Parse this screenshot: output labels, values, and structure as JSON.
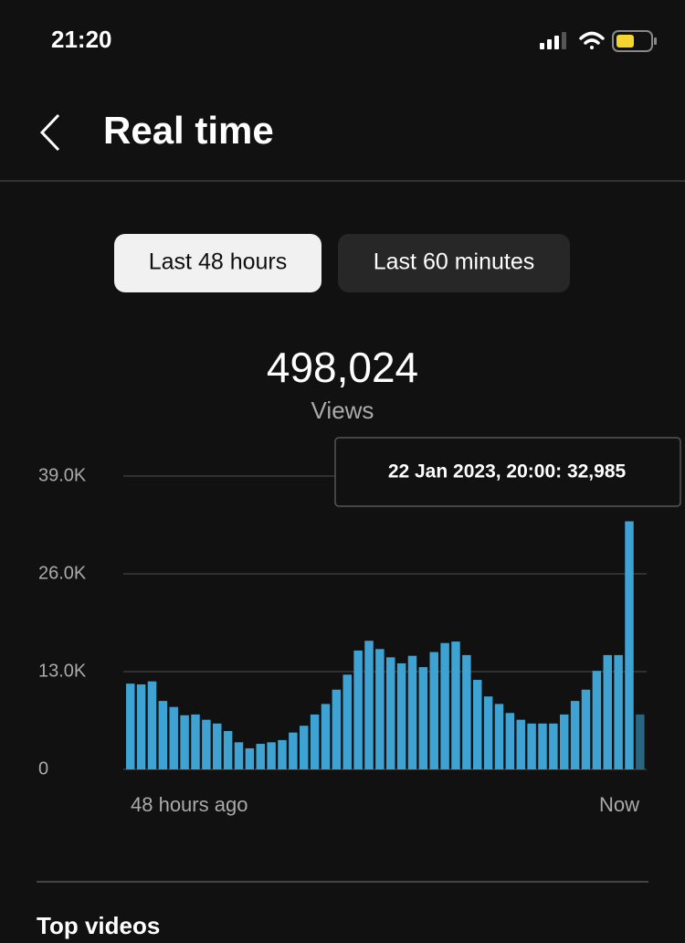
{
  "status_bar": {
    "time": "21:20"
  },
  "header": {
    "title": "Real time"
  },
  "tabs": [
    "Last 48 hours",
    "Last 60 minutes"
  ],
  "summary": {
    "total": "498,024",
    "label": "Views"
  },
  "chart_data": {
    "type": "bar",
    "tooltip": "22 Jan 2023, 20:00: 32,985",
    "x_labels": [
      "48 hours ago",
      "Now"
    ],
    "values": [
      11400,
      11300,
      11700,
      9100,
      8300,
      7200,
      7300,
      6600,
      6100,
      5100,
      3600,
      2800,
      3400,
      3600,
      3900,
      4900,
      5800,
      7300,
      8700,
      10600,
      12600,
      15800,
      17100,
      16000,
      14900,
      14100,
      15100,
      13600,
      15600,
      16800,
      17000,
      15200,
      11900,
      9700,
      8700,
      7500,
      6600,
      6100,
      6100,
      6100,
      7300,
      9100,
      10600,
      13100,
      15200,
      15200,
      32985,
      7300
    ],
    "color": "#3ea2d2",
    "last_color": "#2a6580",
    "ylim": [
      0,
      39000
    ],
    "yticks": [
      0,
      {
        "value": 13000,
        "label": "13.0K"
      },
      {
        "value": 26000,
        "label": "26.0K"
      },
      {
        "value": 39000,
        "label": "39.0K"
      }
    ],
    "grid": true
  },
  "footer": {
    "section_title": "Top videos"
  }
}
